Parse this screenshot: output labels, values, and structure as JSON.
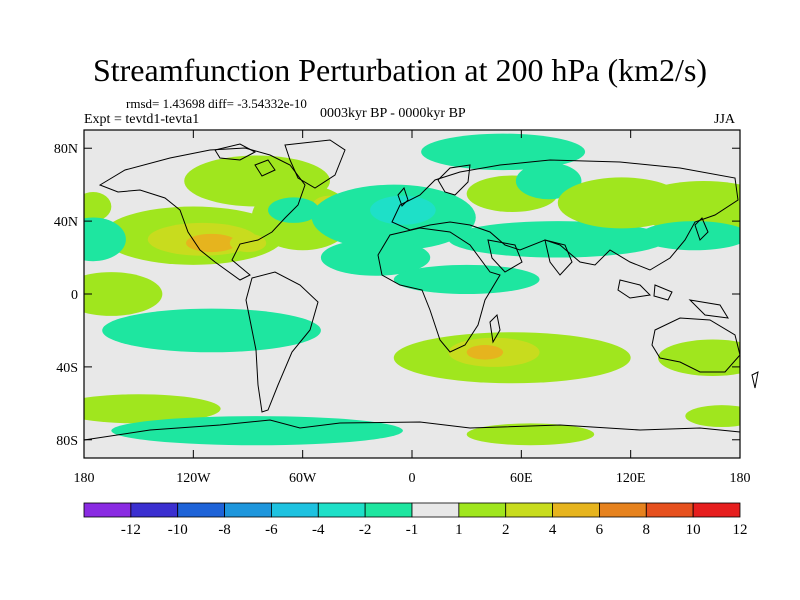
{
  "title": "Streamfunction Perturbation at 200 hPa (km2/s)",
  "stats": "rmsd= 1.43698 diff= -3.54332e-10",
  "experiment": "Expt = tevtd1-tevta1",
  "period": "0003kyr BP - 0000kyr BP",
  "season": "JJA",
  "lat_labels": [
    "80N",
    "40N",
    "0",
    "40S",
    "80S"
  ],
  "lon_labels": [
    "180",
    "120W",
    "60W",
    "0",
    "60E",
    "120E",
    "180"
  ],
  "colorbar": {
    "labels": [
      "-12",
      "-10",
      "-8",
      "-6",
      "-4",
      "-2",
      "-1",
      "1",
      "2",
      "4",
      "6",
      "8",
      "10",
      "12"
    ],
    "colors": [
      "#8a2be2",
      "#3b2fd0",
      "#1e63d8",
      "#1e96dc",
      "#1ec2e0",
      "#1ee0c8",
      "#1ee6a0",
      "#e8e8e8",
      "#a0e61e",
      "#c8dc1e",
      "#e6b41e",
      "#e6821e",
      "#e6501e",
      "#e61e1e"
    ]
  },
  "fields": [
    {
      "lon": -120,
      "lat": 32,
      "rx": 50,
      "ry": 16,
      "level": 1
    },
    {
      "lon": -115,
      "lat": 30,
      "rx": 30,
      "ry": 9,
      "level": 2
    },
    {
      "lon": -110,
      "lat": 28,
      "rx": 14,
      "ry": 5,
      "level": 3
    },
    {
      "lon": -90,
      "lat": 28,
      "rx": 10,
      "ry": 5,
      "level": 2
    },
    {
      "lon": -60,
      "lat": 42,
      "rx": 28,
      "ry": 18,
      "level": 1
    },
    {
      "lon": -45,
      "lat": 48,
      "rx": 10,
      "ry": 6,
      "level": 2
    },
    {
      "lon": -85,
      "lat": 62,
      "rx": 40,
      "ry": 14,
      "level": 1
    },
    {
      "lon": -65,
      "lat": 46,
      "rx": 14,
      "ry": 7,
      "level": -1
    },
    {
      "lon": -10,
      "lat": 42,
      "rx": 45,
      "ry": 18,
      "level": -1
    },
    {
      "lon": -5,
      "lat": 46,
      "rx": 18,
      "ry": 8,
      "level": -2
    },
    {
      "lon": -20,
      "lat": 20,
      "rx": 30,
      "ry": 10,
      "level": -1
    },
    {
      "lon": 50,
      "lat": 78,
      "rx": 45,
      "ry": 10,
      "level": -1
    },
    {
      "lon": 55,
      "lat": 55,
      "rx": 25,
      "ry": 10,
      "level": 1
    },
    {
      "lon": 75,
      "lat": 62,
      "rx": 18,
      "ry": 10,
      "level": -1
    },
    {
      "lon": 80,
      "lat": 30,
      "rx": 60,
      "ry": 10,
      "level": -1
    },
    {
      "lon": 115,
      "lat": 50,
      "rx": 35,
      "ry": 14,
      "level": 1
    },
    {
      "lon": 160,
      "lat": 48,
      "rx": 40,
      "ry": 14,
      "level": 1
    },
    {
      "lon": 155,
      "lat": 32,
      "rx": 30,
      "ry": 8,
      "level": -1
    },
    {
      "lon": -175,
      "lat": 48,
      "rx": 10,
      "ry": 8,
      "level": 1
    },
    {
      "lon": -175,
      "lat": 30,
      "rx": 18,
      "ry": 12,
      "level": -1
    },
    {
      "lon": 30,
      "lat": 8,
      "rx": 40,
      "ry": 8,
      "level": -1
    },
    {
      "lon": -110,
      "lat": -20,
      "rx": 60,
      "ry": 12,
      "level": -1
    },
    {
      "lon": -165,
      "lat": 0,
      "rx": 28,
      "ry": 12,
      "level": 1
    },
    {
      "lon": 55,
      "lat": -35,
      "rx": 65,
      "ry": 14,
      "level": 1
    },
    {
      "lon": 45,
      "lat": -32,
      "rx": 25,
      "ry": 8,
      "level": 2
    },
    {
      "lon": 40,
      "lat": -32,
      "rx": 10,
      "ry": 4,
      "level": 3
    },
    {
      "lon": 165,
      "lat": -35,
      "rx": 30,
      "ry": 10,
      "level": 1
    },
    {
      "lon": -150,
      "lat": -63,
      "rx": 45,
      "ry": 8,
      "level": 1
    },
    {
      "lon": -85,
      "lat": -75,
      "rx": 80,
      "ry": 8,
      "level": -1
    },
    {
      "lon": 65,
      "lat": -77,
      "rx": 35,
      "ry": 6,
      "level": 1
    },
    {
      "lon": 170,
      "lat": -67,
      "rx": 20,
      "ry": 6,
      "level": 1
    }
  ]
}
